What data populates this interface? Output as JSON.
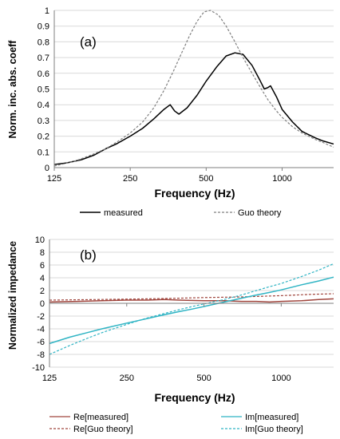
{
  "chart_data": [
    {
      "type": "line",
      "panel_label": "(a)",
      "xlabel": "Frequency (Hz)",
      "ylabel": "Norm. inc. abs. coeff",
      "xscale": "log",
      "xlim": [
        125,
        1600
      ],
      "ylim": [
        0,
        1
      ],
      "xticks": [
        125,
        250,
        500,
        1000
      ],
      "yticks": [
        0,
        0.1,
        0.2,
        0.3,
        0.4,
        0.5,
        0.6,
        0.7,
        0.8,
        0.9,
        1
      ],
      "grid": "horizontal",
      "legend_position": "bottom",
      "series": [
        {
          "name": "measured",
          "color": "#000000",
          "style": "solid",
          "x": [
            125,
            140,
            160,
            180,
            200,
            220,
            250,
            280,
            310,
            340,
            360,
            375,
            390,
            420,
            460,
            500,
            550,
            600,
            650,
            700,
            760,
            820,
            850,
            880,
            900,
            950,
            1000,
            1100,
            1200,
            1350,
            1450,
            1600
          ],
          "y": [
            0.02,
            0.03,
            0.05,
            0.08,
            0.12,
            0.15,
            0.2,
            0.25,
            0.31,
            0.37,
            0.4,
            0.36,
            0.34,
            0.38,
            0.46,
            0.55,
            0.64,
            0.71,
            0.73,
            0.72,
            0.65,
            0.55,
            0.5,
            0.51,
            0.52,
            0.45,
            0.37,
            0.29,
            0.23,
            0.19,
            0.17,
            0.15
          ]
        },
        {
          "name": "Guo theory",
          "color": "#808080",
          "style": "dashed",
          "x": [
            125,
            150,
            175,
            200,
            225,
            250,
            280,
            310,
            340,
            370,
            400,
            430,
            460,
            490,
            520,
            560,
            600,
            650,
            700,
            760,
            820,
            880,
            950,
            1000,
            1100,
            1200,
            1350,
            1450,
            1600
          ],
          "y": [
            0.01,
            0.04,
            0.08,
            0.12,
            0.17,
            0.22,
            0.29,
            0.38,
            0.49,
            0.61,
            0.73,
            0.84,
            0.93,
            0.99,
            1.0,
            0.97,
            0.9,
            0.8,
            0.7,
            0.6,
            0.51,
            0.43,
            0.36,
            0.32,
            0.26,
            0.22,
            0.18,
            0.16,
            0.13
          ]
        }
      ]
    },
    {
      "type": "line",
      "panel_label": "(b)",
      "xlabel": "Frequency (Hz)",
      "ylabel": "Normalized impedance",
      "xscale": "log",
      "xlim": [
        125,
        1600
      ],
      "ylim": [
        -10,
        10
      ],
      "xticks": [
        125,
        250,
        500,
        1000
      ],
      "yticks": [
        -10,
        -8,
        -6,
        -4,
        -2,
        0,
        2,
        4,
        6,
        8,
        10
      ],
      "grid": "horizontal",
      "legend_position": "bottom",
      "series": [
        {
          "name": "Re[measured]",
          "color": "#a0463e",
          "style": "solid",
          "x": [
            125,
            160,
            200,
            250,
            300,
            350,
            400,
            500,
            600,
            700,
            800,
            900,
            1000,
            1200,
            1400,
            1600
          ],
          "y": [
            0.2,
            0.3,
            0.4,
            0.5,
            0.5,
            0.6,
            0.5,
            0.4,
            0.4,
            0.3,
            0.3,
            0.2,
            0.3,
            0.4,
            0.6,
            0.7
          ]
        },
        {
          "name": "Re[Guo theory]",
          "color": "#a0463e",
          "style": "dashed",
          "x": [
            125,
            200,
            300,
            400,
            500,
            700,
            1000,
            1300,
            1600
          ],
          "y": [
            0.5,
            0.6,
            0.7,
            0.8,
            0.9,
            1.0,
            1.2,
            1.4,
            1.5
          ]
        },
        {
          "name": "Im[measured]",
          "color": "#2fb4c4",
          "style": "solid",
          "x": [
            125,
            150,
            175,
            200,
            250,
            300,
            350,
            400,
            450,
            500,
            600,
            700,
            800,
            900,
            1000,
            1200,
            1400,
            1600
          ],
          "y": [
            -6.3,
            -5.3,
            -4.6,
            -4.0,
            -3.1,
            -2.4,
            -1.8,
            -1.3,
            -0.9,
            -0.5,
            0.2,
            0.8,
            1.3,
            1.7,
            2.1,
            2.9,
            3.5,
            4.1
          ]
        },
        {
          "name": "Im[Guo theory]",
          "color": "#2fb4c4",
          "style": "dashed",
          "x": [
            125,
            150,
            175,
            200,
            250,
            300,
            350,
            400,
            450,
            500,
            600,
            700,
            800,
            900,
            1000,
            1200,
            1400,
            1600
          ],
          "y": [
            -8.0,
            -6.6,
            -5.5,
            -4.6,
            -3.3,
            -2.3,
            -1.6,
            -1.0,
            -0.5,
            -0.1,
            0.6,
            1.3,
            2.0,
            2.6,
            3.1,
            4.2,
            5.2,
            6.2
          ]
        }
      ]
    }
  ]
}
